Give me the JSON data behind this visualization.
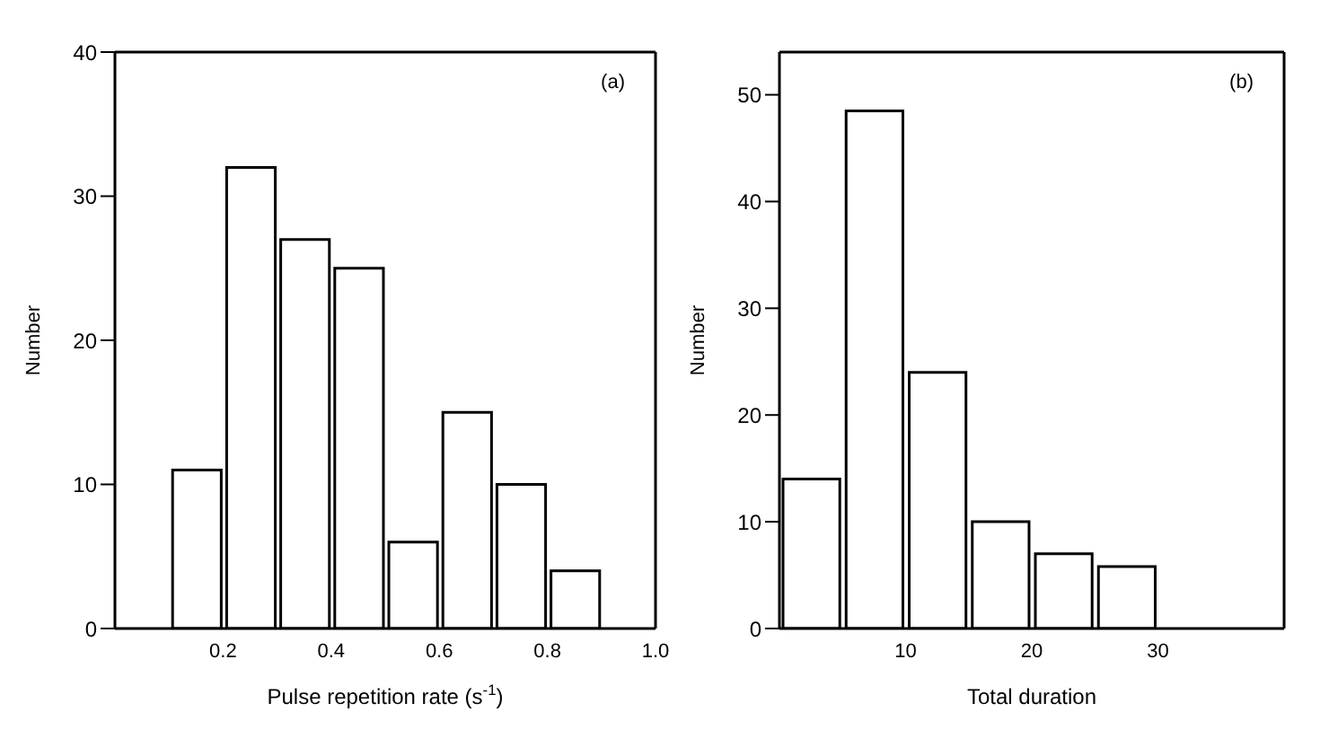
{
  "chart_data": [
    {
      "type": "histogram",
      "xlabel": "Pulse repetition rate (s$^{-1}$)",
      "ylabel": "Number",
      "annotations": [
        "(a)"
      ],
      "bins": [
        0.1,
        0.2,
        0.3,
        0.4,
        0.5,
        0.6,
        0.7,
        0.8,
        0.9
      ],
      "values": [
        11,
        32,
        27,
        25,
        6,
        15,
        10,
        4
      ],
      "color": "#ffffff",
      "xlim": [
        0,
        1.0
      ],
      "xticks": [
        0.2,
        0.4,
        0.6,
        0.8,
        {
          "value": 1.0,
          "label": "1.0"
        }
      ],
      "ylim": [
        0,
        40
      ],
      "yticks": [
        0,
        10,
        20,
        30,
        40
      ]
    },
    {
      "type": "histogram",
      "xlabel": "Total duration",
      "ylabel": "Number",
      "annotations": [
        "(b)"
      ],
      "bins": [
        0,
        5,
        10,
        15,
        20,
        25,
        30
      ],
      "values": [
        14,
        48.5,
        24,
        10,
        7,
        5.8
      ],
      "color": "#ffffff",
      "xlim": [
        0,
        40
      ],
      "xticks": [
        10,
        20,
        30
      ],
      "ylim": [
        0,
        54
      ],
      "yticks": [
        0,
        10,
        20,
        30,
        40,
        50
      ]
    }
  ]
}
